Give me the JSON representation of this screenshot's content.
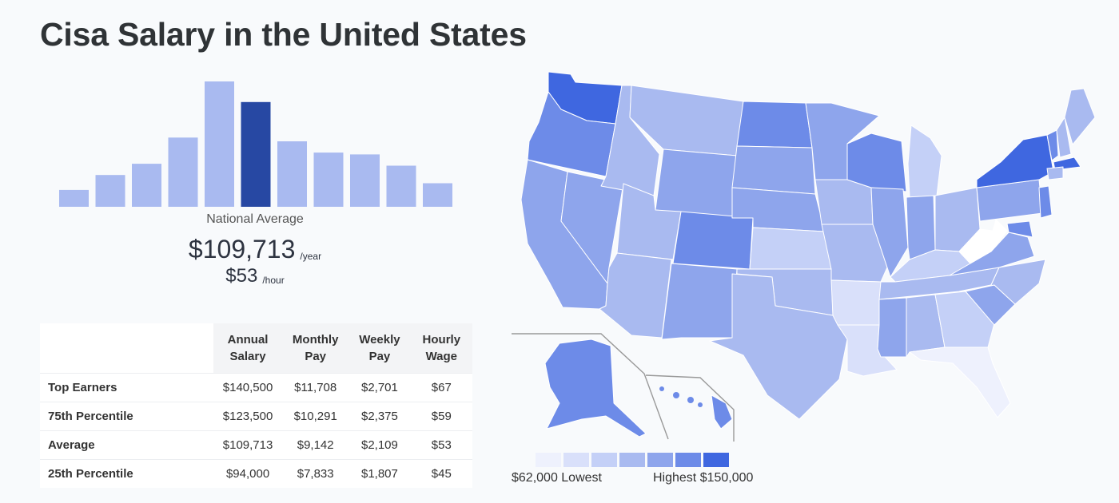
{
  "page": {
    "title": "Cisa Salary in the United States"
  },
  "chart_data": [
    {
      "type": "bar",
      "values": [
        4.5,
        8.5,
        11.5,
        18.5,
        33.5,
        28,
        17.5,
        14.5,
        14,
        11,
        6.3
      ],
      "highlight_index": 5,
      "colors": {
        "bar": "#a9baf0",
        "highlight": "#2748a3"
      },
      "label": "National Average",
      "average_year": "$109,713",
      "year_unit": "/year",
      "average_hour": "$53",
      "hour_unit": "/hour"
    },
    {
      "type": "table",
      "columns": [
        "",
        "Annual Salary",
        "Monthly Pay",
        "Weekly Pay",
        "Hourly Wage"
      ],
      "rows": [
        [
          "Top Earners",
          "$140,500",
          "$11,708",
          "$2,701",
          "$67"
        ],
        [
          "75th Percentile",
          "$123,500",
          "$10,291",
          "$2,375",
          "$59"
        ],
        [
          "Average",
          "$109,713",
          "$9,142",
          "$2,109",
          "$53"
        ],
        [
          "25th Percentile",
          "$94,000",
          "$7,833",
          "$1,807",
          "$45"
        ]
      ]
    }
  ],
  "map": {
    "legend_colors": [
      "#eef1fd",
      "#d9e0fa",
      "#c4d0f7",
      "#a9baf0",
      "#8ea5ec",
      "#6d8be8",
      "#3f67e0"
    ],
    "low_label": "$62,000 Lowest",
    "high_label": "Highest $150,000"
  }
}
